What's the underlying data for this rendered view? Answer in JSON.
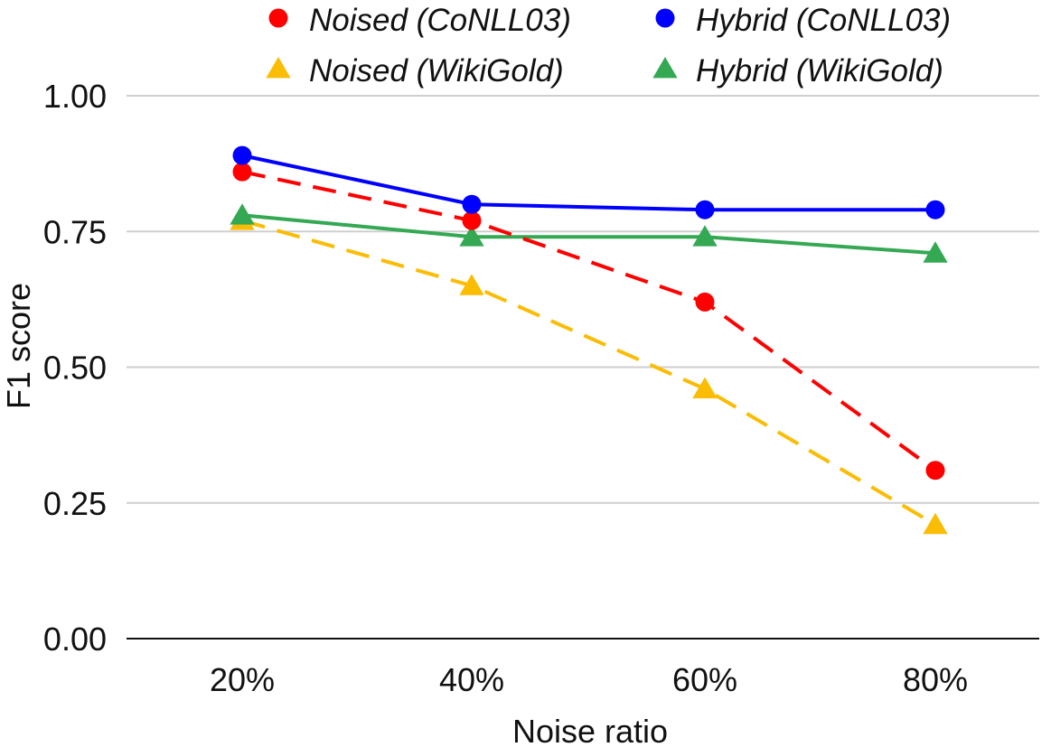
{
  "chart_data": {
    "type": "line",
    "title": "",
    "xlabel": "Noise ratio",
    "ylabel": "F1 score",
    "categories": [
      "20%",
      "40%",
      "60%",
      "80%"
    ],
    "ylim": [
      0,
      1
    ],
    "yticks": [
      "0.00",
      "0.25",
      "0.50",
      "0.75",
      "1.00"
    ],
    "ytick_values": [
      0,
      0.25,
      0.5,
      0.75,
      1.0
    ],
    "grid": "horizontal",
    "legend_position": "top",
    "series": [
      {
        "name": "Noised (CoNLL03)",
        "values": [
          0.86,
          0.77,
          0.62,
          0.31
        ],
        "color": "#ff0000",
        "marker": "circle",
        "dashed": true
      },
      {
        "name": "Hybrid (CoNLL03)",
        "values": [
          0.89,
          0.8,
          0.79,
          0.79
        ],
        "color": "#0000ff",
        "marker": "circle",
        "dashed": false
      },
      {
        "name": "Noised (WikiGold)",
        "values": [
          0.77,
          0.65,
          0.46,
          0.21
        ],
        "color": "#fbbc04",
        "marker": "triangle",
        "dashed": true
      },
      {
        "name": "Hybrid (WikiGold)",
        "values": [
          0.78,
          0.74,
          0.74,
          0.71
        ],
        "color": "#34a853",
        "marker": "triangle",
        "dashed": false
      }
    ]
  }
}
